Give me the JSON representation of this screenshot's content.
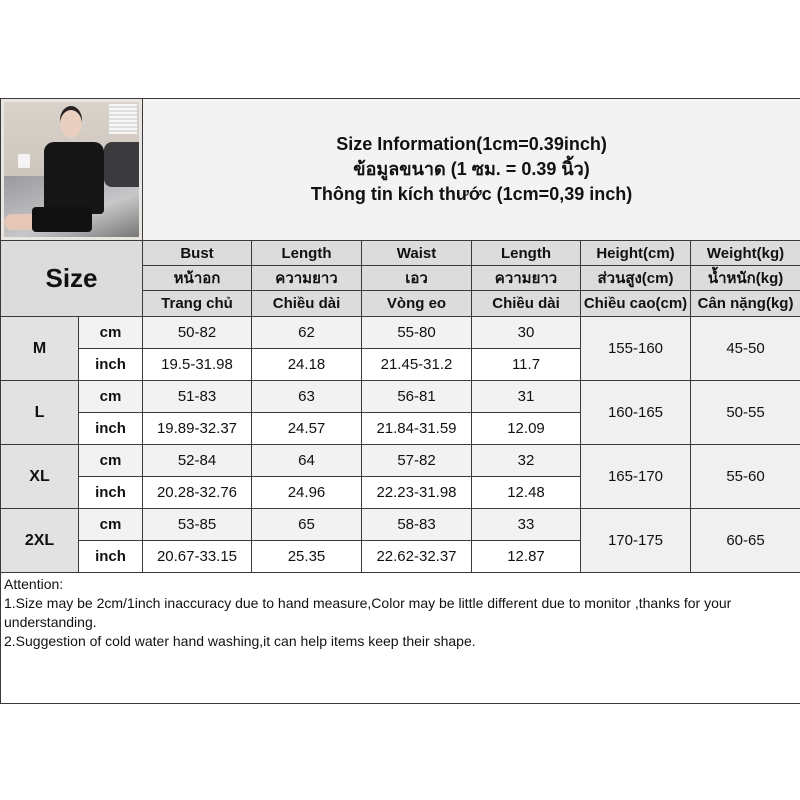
{
  "title": {
    "line1": "Size Information(1cm=0.39inch)",
    "line2": "ข้อมูลขนาด (1 ซม. = 0.39 นิ้ว)",
    "line3": "Thông tin kích thước (1cm=0,39 inch)"
  },
  "size_label": "Size",
  "headers": [
    {
      "en": "Bust",
      "th": "หน้าอก",
      "vi": "Trang chủ"
    },
    {
      "en": "Length",
      "th": "ความยาว",
      "vi": "Chiều dài"
    },
    {
      "en": "Waist",
      "th": "เอว",
      "vi": "Vòng eo"
    },
    {
      "en": "Length",
      "th": "ความยาว",
      "vi": "Chiều dài"
    },
    {
      "en": "Height(cm)",
      "th": "ส่วนสูง(cm)",
      "vi": "Chiều cao(cm)"
    },
    {
      "en": "Weight(kg)",
      "th": "น้ำหนัก(kg)",
      "vi": "Cân nặng(kg)"
    }
  ],
  "units": {
    "cm": "cm",
    "inch": "inch"
  },
  "rows": [
    {
      "size": "M",
      "cm": [
        "50-82",
        "62",
        "55-80",
        "30"
      ],
      "inch": [
        "19.5-31.98",
        "24.18",
        "21.45-31.2",
        "11.7"
      ],
      "height": "155-160",
      "weight": "45-50"
    },
    {
      "size": "L",
      "cm": [
        "51-83",
        "63",
        "56-81",
        "31"
      ],
      "inch": [
        "19.89-32.37",
        "24.57",
        "21.84-31.59",
        "12.09"
      ],
      "height": "160-165",
      "weight": "50-55"
    },
    {
      "size": "XL",
      "cm": [
        "52-84",
        "64",
        "57-82",
        "32"
      ],
      "inch": [
        "20.28-32.76",
        "24.96",
        "22.23-31.98",
        "12.48"
      ],
      "height": "165-170",
      "weight": "55-60"
    },
    {
      "size": "2XL",
      "cm": [
        "53-85",
        "65",
        "58-83",
        "33"
      ],
      "inch": [
        "20.67-33.15",
        "25.35",
        "22.62-32.37",
        "12.87"
      ],
      "height": "170-175",
      "weight": "60-65"
    }
  ],
  "attention": {
    "heading": "Attention:",
    "line1": "1.Size may be 2cm/1inch inaccuracy due to hand measure,Color may be little different due to monitor ,thanks for your understanding.",
    "line2": "2.Suggestion of cold water hand washing,it can help items keep their shape."
  }
}
